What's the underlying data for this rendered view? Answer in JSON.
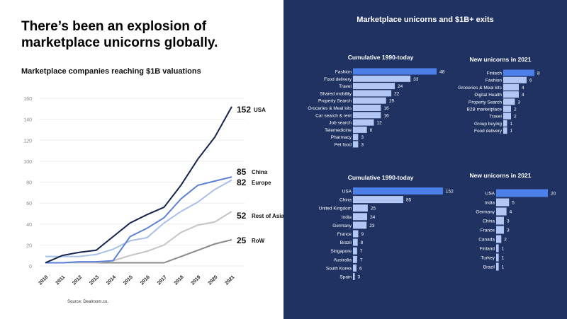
{
  "left": {
    "headline": "There’s been an explosion of marketplace unicorns globally.",
    "source": "Source: Dealroom.co."
  },
  "right": {
    "title": "Marketplace unicorns and $1B+ exits"
  },
  "chart_data": [
    {
      "type": "line",
      "title": "Marketplace companies reaching $1B valuations",
      "x": [
        "2010",
        "2011",
        "2012",
        "2013",
        "2014",
        "2015",
        "2016",
        "2017",
        "2018",
        "2019",
        "2020",
        "2021"
      ],
      "ylim": [
        0,
        160
      ],
      "yticks": [
        0,
        20,
        40,
        60,
        80,
        100,
        120,
        140,
        160
      ],
      "grid": true,
      "series": [
        {
          "name": "USA",
          "end_label": "152",
          "color": "#14244d",
          "values": [
            3,
            10,
            13,
            15,
            28,
            41,
            49,
            56,
            77,
            102,
            123,
            152
          ]
        },
        {
          "name": "China",
          "end_label": "85",
          "color": "#5b80d6",
          "values": [
            3,
            3,
            4,
            4,
            5,
            28,
            36,
            46,
            64,
            77,
            81,
            85
          ]
        },
        {
          "name": "Europe",
          "end_label": "82",
          "color": "#a9c0ea",
          "values": [
            9,
            9,
            9,
            11,
            16,
            24,
            27,
            41,
            52,
            61,
            73,
            82
          ]
        },
        {
          "name": "Rest of Asia",
          "end_label": "52",
          "color": "#c4c4c4",
          "values": [
            3,
            3,
            3,
            3,
            5,
            10,
            14,
            20,
            32,
            39,
            42,
            52
          ]
        },
        {
          "name": "RoW",
          "end_label": "25",
          "color": "#8a8a8a",
          "values": [
            3,
            3,
            3,
            3,
            3,
            3,
            3,
            3,
            9,
            15,
            21,
            25
          ]
        }
      ]
    },
    {
      "type": "bar",
      "orientation": "horizontal",
      "title": "Cumulative 1990-today",
      "categories": [
        "Fashion",
        "Food delivery",
        "Travel",
        "Shared mobility",
        "Property Search",
        "Groceries & Meal kits",
        "Car search & rent",
        "Job search",
        "Telemedicine",
        "Pharmacy",
        "Pet food"
      ],
      "values": [
        48,
        33,
        24,
        22,
        19,
        16,
        16,
        12,
        8,
        3,
        3
      ]
    },
    {
      "type": "bar",
      "orientation": "horizontal",
      "title": "New unicorns in 2021",
      "categories": [
        "Fintech",
        "Fashion",
        "Groceries & Meal kits",
        "Digital Health",
        "Property Search",
        "B2B marketplace",
        "Travel",
        "Group buying",
        "Food delivery"
      ],
      "values": [
        8,
        6,
        4,
        4,
        3,
        2,
        2,
        1,
        1
      ]
    },
    {
      "type": "bar",
      "orientation": "horizontal",
      "title": "Cumulative 1990-today",
      "categories": [
        "USA",
        "China",
        "United Kingdom",
        "India",
        "Germany",
        "France",
        "Brazil",
        "Singapore",
        "Australia",
        "South Korea",
        "Spain"
      ],
      "values": [
        152,
        85,
        25,
        24,
        23,
        9,
        8,
        7,
        7,
        6,
        3
      ]
    },
    {
      "type": "bar",
      "orientation": "horizontal",
      "title": "New unicorns in 2021",
      "categories": [
        "USA",
        "India",
        "Germany",
        "China",
        "France",
        "Canada",
        "Finland",
        "Turkey",
        "Brazil"
      ],
      "values": [
        20,
        5,
        4,
        3,
        3,
        2,
        1,
        1,
        1
      ]
    }
  ],
  "colors": {
    "highlight_bar": "#4d7fe8",
    "bar": "#b3c7f4",
    "panel_bg": "#1f3262"
  }
}
